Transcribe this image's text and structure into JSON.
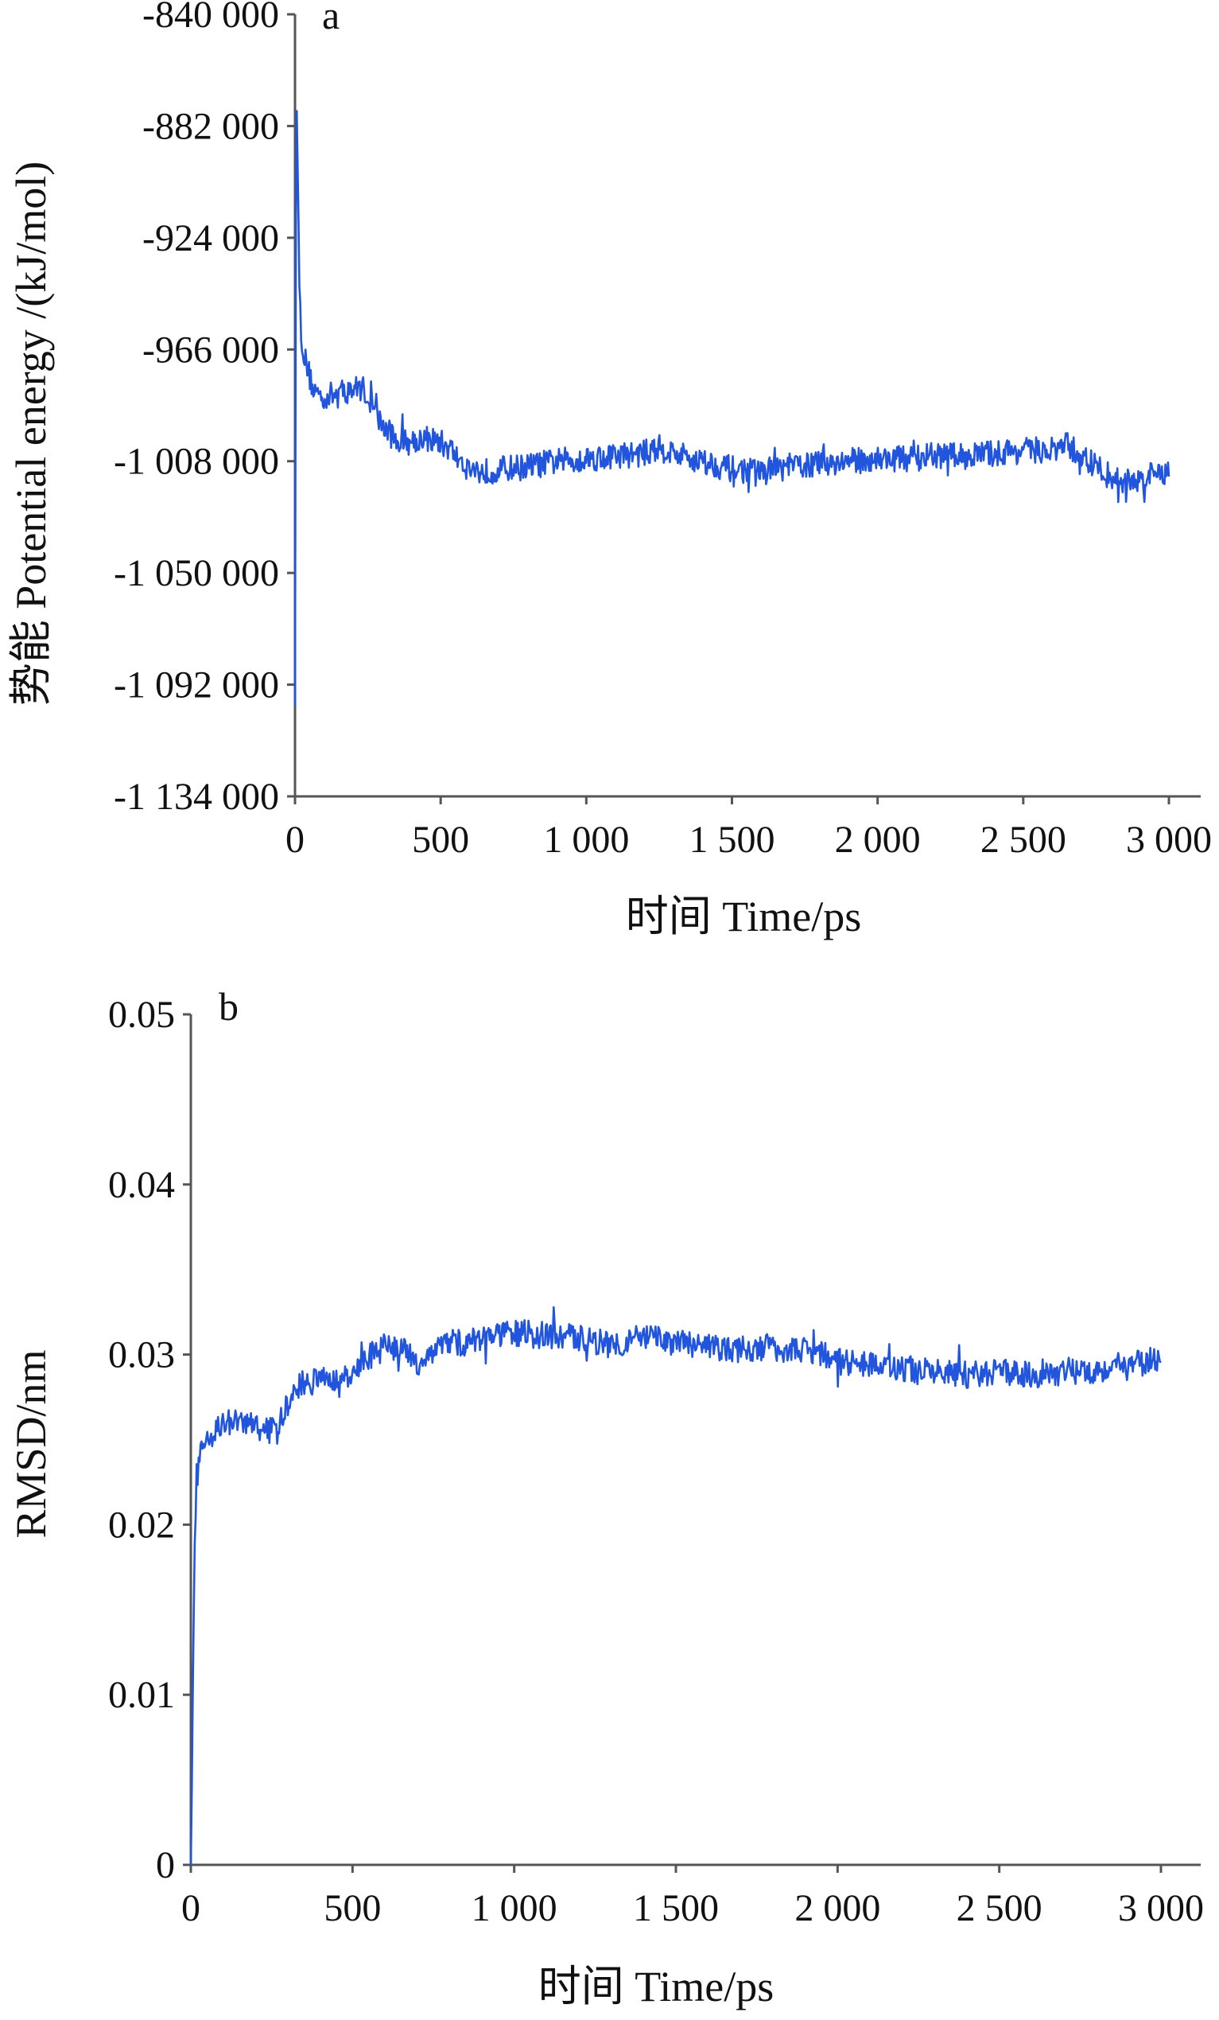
{
  "chart_data": [
    {
      "type": "line",
      "panel_label": "a",
      "xlabel": "时间 Time/ps",
      "ylabel": "势能 Potential energy /(kJ/mol)",
      "xlim": [
        0,
        3000
      ],
      "ylim": [
        -1134000,
        -840000
      ],
      "xticks": [
        0,
        500,
        1000,
        1500,
        2000,
        2500,
        3000
      ],
      "xtick_labels": [
        "0",
        "500",
        "1 000",
        "1 500",
        "2 000",
        "2 500",
        "3 000"
      ],
      "yticks": [
        -840000,
        -882000,
        -924000,
        -966000,
        -1008000,
        -1050000,
        -1092000,
        -1134000
      ],
      "ytick_labels": [
        "-840 000",
        "-882 000",
        "-924 000",
        "-966 000",
        "-1 008 000",
        "-1 050 000",
        "-1 092 000",
        "-1 134 000"
      ],
      "grid": false,
      "color": "#2255dd",
      "series": [
        {
          "x": [
            0,
            3,
            6,
            10,
            15,
            20,
            30,
            45,
            60,
            80,
            100,
            130,
            160,
            200,
            230,
            260,
            290,
            320,
            350,
            380,
            410,
            440,
            470,
            500,
            530,
            560,
            600,
            650,
            700,
            800,
            900,
            1000,
            1100,
            1200,
            1250,
            1300,
            1400,
            1500,
            1600,
            1700,
            1800,
            1900,
            2000,
            2100,
            2200,
            2300,
            2400,
            2500,
            2600,
            2650,
            2700,
            2750,
            2800,
            2850,
            2900,
            2950,
            3000
          ],
          "y": [
            -1100000,
            -920000,
            -875000,
            -905000,
            -940000,
            -958000,
            -968000,
            -974000,
            -980000,
            -983000,
            -984000,
            -983000,
            -982000,
            -981000,
            -980000,
            -986000,
            -993000,
            -997000,
            -1000000,
            -1001000,
            -1000000,
            -999000,
            -1000000,
            -1001000,
            -1003000,
            -1007000,
            -1011000,
            -1012000,
            -1011000,
            -1010000,
            -1008000,
            -1007000,
            -1006000,
            -1005000,
            -1003000,
            -1005000,
            -1008000,
            -1011000,
            -1012000,
            -1010000,
            -1009000,
            -1008000,
            -1007000,
            -1007000,
            -1006000,
            -1006000,
            -1005000,
            -1004000,
            -1004000,
            -1002000,
            -1006000,
            -1010000,
            -1014000,
            -1016000,
            -1015000,
            -1013000,
            -1012000
          ],
          "noise_amplitude": 5000
        }
      ]
    },
    {
      "type": "line",
      "panel_label": "b",
      "xlabel": "时间 Time/ps",
      "ylabel": "RMSD/nm",
      "xlim": [
        0,
        3000
      ],
      "ylim": [
        0,
        0.05
      ],
      "xticks": [
        0,
        500,
        1000,
        1500,
        2000,
        2500,
        3000
      ],
      "xtick_labels": [
        "0",
        "500",
        "1 000",
        "1 500",
        "2 000",
        "2 500",
        "3 000"
      ],
      "yticks": [
        0,
        0.01,
        0.02,
        0.03,
        0.04,
        0.05
      ],
      "ytick_labels": [
        "0",
        "0.01",
        "0.02",
        "0.03",
        "0.04",
        "0.05"
      ],
      "grid": false,
      "color": "#2255dd",
      "series": [
        {
          "x": [
            0,
            4,
            8,
            12,
            20,
            35,
            50,
            80,
            120,
            160,
            200,
            240,
            270,
            300,
            340,
            400,
            460,
            500,
            550,
            600,
            650,
            700,
            750,
            800,
            850,
            900,
            1000,
            1100,
            1200,
            1300,
            1400,
            1500,
            1600,
            1700,
            1800,
            1900,
            1950,
            2000,
            2100,
            2200,
            2300,
            2400,
            2500,
            2600,
            2700,
            2800,
            2900,
            3000
          ],
          "y": [
            0.0,
            0.006,
            0.014,
            0.019,
            0.023,
            0.0245,
            0.025,
            0.0257,
            0.026,
            0.026,
            0.0258,
            0.0255,
            0.0258,
            0.027,
            0.0283,
            0.0285,
            0.0283,
            0.0288,
            0.0298,
            0.0305,
            0.0303,
            0.0295,
            0.0302,
            0.0308,
            0.0306,
            0.031,
            0.0313,
            0.0311,
            0.031,
            0.0306,
            0.031,
            0.0307,
            0.0304,
            0.0303,
            0.0304,
            0.0302,
            0.0301,
            0.0296,
            0.0294,
            0.0292,
            0.0289,
            0.0288,
            0.0289,
            0.0289,
            0.029,
            0.0291,
            0.0293,
            0.0298
          ],
          "noise_amplitude": 0.0008
        }
      ]
    }
  ]
}
